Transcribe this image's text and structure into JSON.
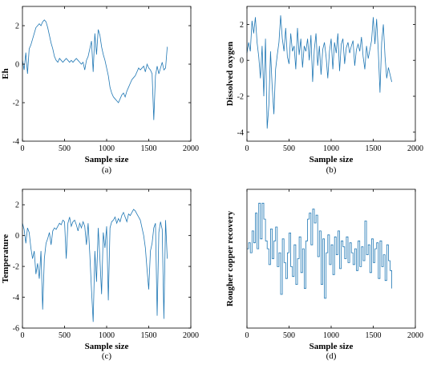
{
  "chart_data": [
    {
      "type": "line",
      "panel_label": "(a)",
      "xlabel": "Sample size",
      "ylabel": "Eh",
      "xlim": [
        0,
        2000
      ],
      "ylim": [
        -4,
        3
      ],
      "xticks": [
        0,
        500,
        1000,
        1500,
        2000
      ],
      "yticks": [
        -4,
        -2,
        0,
        2
      ],
      "grid": false,
      "series": [
        {
          "x": [
            0,
            20,
            40,
            60,
            80,
            100,
            120,
            140,
            160,
            180,
            200,
            220,
            240,
            260,
            280,
            300,
            320,
            340,
            360,
            380,
            400,
            420,
            440,
            460,
            480,
            500,
            520,
            540,
            560,
            580,
            600,
            620,
            640,
            660,
            680,
            700,
            720,
            740,
            760,
            780,
            800,
            820,
            840,
            860,
            880,
            900,
            920,
            940,
            960,
            980,
            1000,
            1020,
            1040,
            1060,
            1080,
            1100,
            1120,
            1140,
            1160,
            1180,
            1200,
            1220,
            1240,
            1260,
            1280,
            1300,
            1320,
            1340,
            1360,
            1380,
            1400,
            1420,
            1440,
            1460,
            1480,
            1500,
            1520,
            1540,
            1560,
            1580,
            1600,
            1620,
            1640,
            1660,
            1680,
            1700,
            1720
          ],
          "y": [
            0.2,
            -0.3,
            0.6,
            -0.5,
            0.8,
            1.0,
            1.3,
            1.6,
            1.9,
            2.0,
            2.1,
            2.0,
            2.2,
            2.3,
            2.2,
            1.9,
            1.5,
            1.1,
            0.8,
            0.4,
            0.2,
            0.1,
            0.3,
            0.2,
            0.1,
            0.2,
            0.3,
            0.2,
            0.1,
            0.2,
            0.1,
            0.2,
            0.3,
            0.2,
            0.1,
            0.0,
            0.1,
            -0.3,
            0.2,
            0.4,
            0.8,
            1.2,
            -0.4,
            1.6,
            0.5,
            1.8,
            1.5,
            0.9,
            0.5,
            0.2,
            -0.2,
            -0.6,
            -1.2,
            -1.5,
            -1.7,
            -1.8,
            -1.9,
            -2.0,
            -1.8,
            -1.6,
            -1.5,
            -1.7,
            -1.4,
            -1.2,
            -1.0,
            -0.8,
            -0.7,
            -0.6,
            -0.4,
            -0.2,
            -0.3,
            -0.2,
            -0.1,
            -0.4,
            0.0,
            -0.2,
            -0.3,
            -0.5,
            -2.9,
            -0.6,
            -0.1,
            -0.5,
            -0.2,
            0.1,
            -0.3,
            -0.2,
            0.9
          ]
        }
      ]
    },
    {
      "type": "line",
      "panel_label": "(b)",
      "xlabel": "Sample size",
      "ylabel": "Dissolved oxygen",
      "xlim": [
        0,
        2000
      ],
      "ylim": [
        -4.5,
        3
      ],
      "xticks": [
        0,
        500,
        1000,
        1500,
        2000
      ],
      "yticks": [
        -4,
        -2,
        0,
        2
      ],
      "grid": false,
      "series": [
        {
          "x": [
            0,
            20,
            40,
            60,
            80,
            100,
            120,
            140,
            160,
            180,
            200,
            220,
            240,
            260,
            280,
            300,
            320,
            340,
            360,
            380,
            400,
            420,
            440,
            460,
            480,
            500,
            520,
            540,
            560,
            580,
            600,
            620,
            640,
            660,
            680,
            700,
            720,
            740,
            760,
            780,
            800,
            820,
            840,
            860,
            880,
            900,
            920,
            940,
            960,
            980,
            1000,
            1020,
            1040,
            1060,
            1080,
            1100,
            1120,
            1140,
            1160,
            1180,
            1200,
            1220,
            1240,
            1260,
            1280,
            1300,
            1320,
            1340,
            1360,
            1380,
            1400,
            1420,
            1440,
            1460,
            1480,
            1500,
            1520,
            1540,
            1560,
            1580,
            1600,
            1620,
            1640,
            1660,
            1680,
            1700,
            1720
          ],
          "y": [
            0.4,
            1.0,
            0.5,
            2.2,
            1.5,
            2.4,
            1.0,
            0.2,
            -1.0,
            0.8,
            -2.0,
            1.2,
            -3.8,
            -2.5,
            0.5,
            -1.5,
            -3.0,
            -0.5,
            0.3,
            1.0,
            2.5,
            1.2,
            0.5,
            1.8,
            0.2,
            -0.2,
            1.5,
            0.5,
            0.8,
            -0.5,
            1.8,
            0.3,
            1.2,
            -0.4,
            0.8,
            0.5,
            1.2,
            0.0,
            1.4,
            -1.2,
            0.6,
            1.5,
            -0.3,
            0.8,
            -0.8,
            0.6,
            1.0,
            0.2,
            -1.0,
            0.5,
            1.2,
            -0.5,
            1.0,
            0.4,
            1.5,
            -0.6,
            0.9,
            1.2,
            -0.2,
            0.7,
            1.0,
            0.4,
            0.8,
            1.1,
            -0.3,
            0.6,
            0.9,
            0.5,
            1.3,
            0.2,
            -0.5,
            0.8,
            0.1,
            0.6,
            1.1,
            2.4,
            0.9,
            2.3,
            0.5,
            -1.8,
            1.0,
            2.0,
            0.2,
            -1.0,
            -0.4,
            -0.8,
            -1.2
          ]
        }
      ]
    },
    {
      "type": "line",
      "panel_label": "(c)",
      "xlabel": "Sample size",
      "ylabel": "Temperature",
      "xlim": [
        0,
        2000
      ],
      "ylim": [
        -6,
        3
      ],
      "xticks": [
        0,
        500,
        1000,
        1500,
        2000
      ],
      "yticks": [
        -6,
        -4,
        -2,
        0,
        2
      ],
      "grid": false,
      "series": [
        {
          "x": [
            0,
            20,
            40,
            60,
            80,
            100,
            120,
            140,
            160,
            180,
            200,
            220,
            240,
            260,
            280,
            300,
            320,
            340,
            360,
            380,
            400,
            420,
            440,
            460,
            480,
            500,
            520,
            540,
            560,
            580,
            600,
            620,
            640,
            660,
            680,
            700,
            720,
            740,
            760,
            780,
            800,
            820,
            840,
            860,
            880,
            900,
            920,
            940,
            960,
            980,
            1000,
            1020,
            1040,
            1060,
            1080,
            1100,
            1120,
            1140,
            1160,
            1180,
            1200,
            1220,
            1240,
            1260,
            1280,
            1300,
            1320,
            1340,
            1360,
            1380,
            1400,
            1420,
            1440,
            1460,
            1480,
            1500,
            1520,
            1540,
            1560,
            1580,
            1600,
            1620,
            1640,
            1660,
            1680,
            1700,
            1720
          ],
          "y": [
            0.8,
            0.4,
            -0.5,
            0.5,
            0.2,
            -0.8,
            -1.5,
            -1.0,
            -2.5,
            -1.8,
            -2.8,
            -1.0,
            -4.8,
            -1.5,
            -0.5,
            -0.2,
            0.2,
            -0.6,
            0.3,
            0.5,
            0.4,
            0.6,
            0.8,
            0.7,
            1.0,
            0.9,
            -1.5,
            0.8,
            1.2,
            0.6,
            0.9,
            1.0,
            0.7,
            0.3,
            0.8,
            0.5,
            0.9,
            0.6,
            -0.6,
            0.8,
            -1.2,
            -3.5,
            -5.6,
            -1.0,
            -3.0,
            0.5,
            -1.5,
            -3.8,
            0.2,
            -0.8,
            0.6,
            -4.2,
            0.5,
            0.9,
            1.0,
            1.2,
            0.8,
            1.1,
            0.9,
            1.3,
            1.5,
            1.2,
            0.9,
            1.4,
            1.3,
            1.5,
            1.7,
            1.6,
            1.4,
            1.2,
            1.0,
            0.5,
            0.0,
            -0.8,
            -2.2,
            -3.5,
            -1.0,
            -0.5,
            0.5,
            0.8,
            -5.2,
            0.2,
            0.9,
            0.4,
            -5.4,
            1.0,
            -1.5
          ]
        }
      ]
    },
    {
      "type": "line",
      "panel_label": "(d)",
      "xlabel": "Sample size",
      "ylabel": "Rougher copper recovery",
      "xlim": [
        0,
        2000
      ],
      "ylim": [
        -4,
        3
      ],
      "xticks": [
        0,
        500,
        1000,
        1500,
        2000
      ],
      "yticks": [],
      "grid": false,
      "series": [
        {
          "step": true,
          "x": [
            0,
            20,
            40,
            60,
            80,
            100,
            120,
            140,
            160,
            180,
            200,
            220,
            240,
            260,
            280,
            300,
            320,
            340,
            360,
            380,
            400,
            420,
            440,
            460,
            480,
            500,
            520,
            540,
            560,
            580,
            600,
            620,
            640,
            660,
            680,
            700,
            720,
            740,
            760,
            780,
            800,
            820,
            840,
            860,
            880,
            900,
            920,
            940,
            960,
            980,
            1000,
            1020,
            1040,
            1060,
            1080,
            1100,
            1120,
            1140,
            1160,
            1180,
            1200,
            1220,
            1240,
            1260,
            1280,
            1300,
            1320,
            1340,
            1360,
            1380,
            1400,
            1420,
            1440,
            1460,
            1480,
            1500,
            1520,
            1540,
            1560,
            1580,
            1600,
            1620,
            1640,
            1660,
            1680,
            1700,
            1720
          ],
          "y": [
            0.0,
            0.3,
            -0.2,
            0.9,
            0.3,
            1.8,
            0.0,
            2.3,
            0.5,
            2.3,
            1.5,
            0.4,
            0.0,
            -0.8,
            1.0,
            -0.5,
            0.4,
            1.1,
            -0.9,
            -0.2,
            -2.3,
            0.5,
            -0.7,
            -1.5,
            -0.2,
            0.8,
            -0.9,
            -1.4,
            0.2,
            -1.8,
            -0.5,
            0.6,
            -1.2,
            0.0,
            -2.0,
            0.4,
            1.5,
            1.8,
            0.2,
            2.0,
            1.3,
            1.7,
            -0.4,
            0.9,
            -1.8,
            0.5,
            -2.5,
            -0.2,
            0.7,
            -0.8,
            0.2,
            -1.3,
            0.6,
            -0.3,
            0.9,
            -1.0,
            0.4,
            0.1,
            -0.5,
            0.6,
            -0.7,
            0.3,
            -0.2,
            -0.8,
            0.0,
            -1.1,
            0.4,
            -0.9,
            0.1,
            -0.6,
            1.4,
            -0.3,
            0.2,
            -1.2,
            0.5,
            -0.7,
            0.0,
            0.3,
            -1.5,
            0.4,
            -0.9,
            -0.3,
            -1.6,
            0.2,
            -0.6,
            -1.1,
            -2.0
          ]
        }
      ]
    }
  ]
}
